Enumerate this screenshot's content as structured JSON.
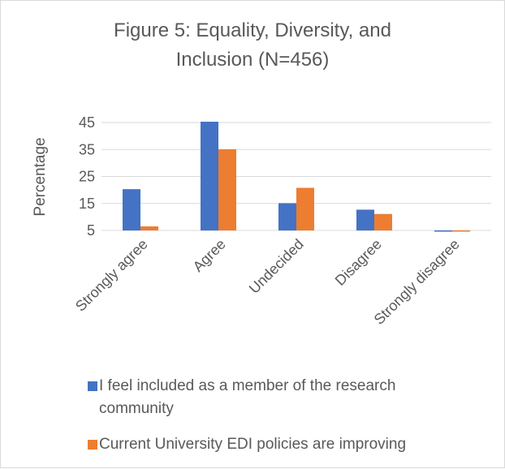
{
  "chart_data": {
    "type": "bar",
    "title": "Figure 5: Equality, Diversity, and Inclusion (N=456)",
    "title_lines": [
      "Figure 5: Equality, Diversity, and",
      "Inclusion (N=456)"
    ],
    "ylabel": "Percentage",
    "xlabel": "",
    "ylim": [
      5,
      45
    ],
    "yticks": [
      5,
      15,
      25,
      35,
      45
    ],
    "grid": true,
    "legend_position": "bottom",
    "categories": [
      "Strongly agree",
      "Agree",
      "Undecided",
      "Disagree",
      "Strongly disagree"
    ],
    "series": [
      {
        "name": "I feel included as a member of the research community",
        "legend_lines": [
          "I feel included as a member of the research",
          "community"
        ],
        "color": "#4472c4",
        "values": [
          20.3,
          45.3,
          15.1,
          12.7,
          4.6
        ]
      },
      {
        "name": "Current University EDI policies are improving",
        "legend_lines": [
          "Current University EDI policies are improving"
        ],
        "color": "#ed7d31",
        "values": [
          6.5,
          35.1,
          20.8,
          11.1,
          4.9
        ]
      }
    ]
  }
}
